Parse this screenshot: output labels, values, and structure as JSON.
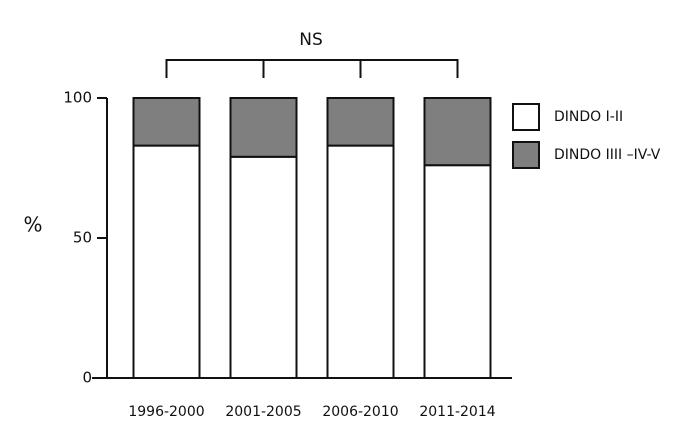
{
  "chart_data": {
    "type": "stacked_bar",
    "annotation": "NS",
    "y_label": "%",
    "categories": [
      "1996-2000",
      "2001-2005",
      "2006-2010",
      "2011-2014"
    ],
    "series": [
      {
        "name": "DINDO I-II",
        "color": "#ffffff",
        "values": [
          83,
          79,
          83,
          76
        ]
      },
      {
        "name": "DINDO IIII –IV-V",
        "color": "#7f7f7f",
        "values": [
          17,
          21,
          17,
          24
        ]
      }
    ],
    "ylim": [
      0,
      100
    ],
    "yticks": [
      0,
      50,
      100
    ],
    "grid": false
  }
}
